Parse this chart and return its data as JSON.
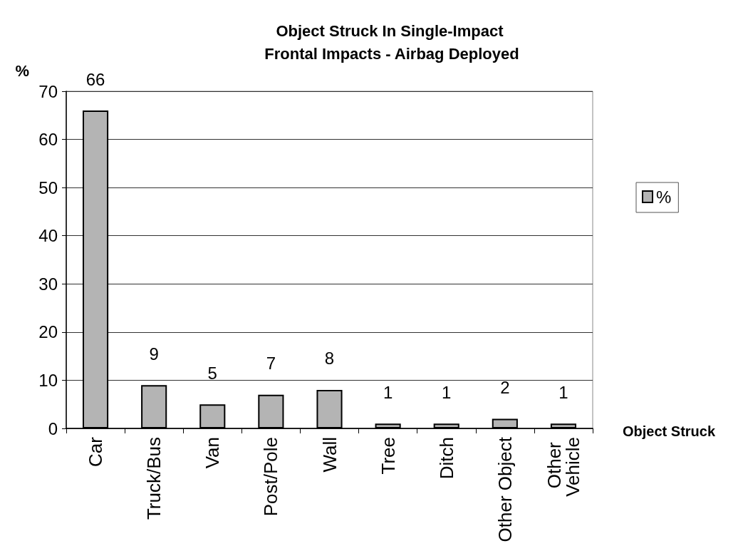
{
  "chart_data": {
    "type": "bar",
    "title": "Object Struck In Single-Impact Frontal Impacts - Airbag Deployed",
    "xlabel": "Object Struck",
    "ylabel": "%",
    "categories": [
      "Car",
      "Truck/Bus",
      "Van",
      "Post/Pole",
      "Wall",
      "Tree",
      "Ditch",
      "Other Object",
      "Other Vehicle"
    ],
    "series": [
      {
        "name": "%",
        "color": "#b4b4b4",
        "values": [
          66,
          9,
          5,
          7,
          8,
          1,
          1,
          2,
          1
        ]
      }
    ],
    "ylim": [
      0,
      70
    ],
    "yticks": [
      0,
      10,
      20,
      30,
      40,
      50,
      60,
      70
    ],
    "grid": "y",
    "legend": "right",
    "data_labels": true
  }
}
